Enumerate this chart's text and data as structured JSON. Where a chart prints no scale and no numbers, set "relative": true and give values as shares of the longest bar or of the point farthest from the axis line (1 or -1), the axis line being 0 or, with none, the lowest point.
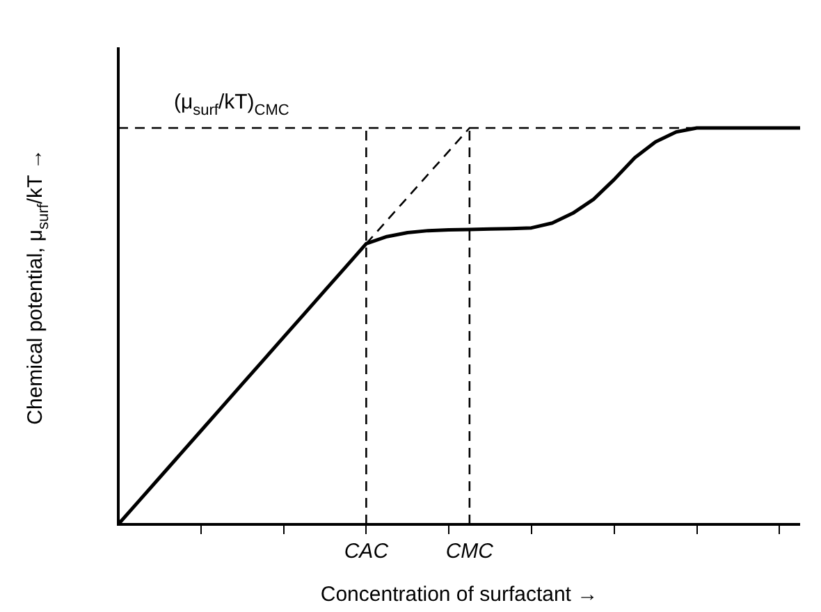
{
  "chart_data": {
    "type": "line",
    "relative": true,
    "xlabel": "Concentration of surfactant →",
    "ylabel": "Chemical potential, μ$_{surf}$/kT →",
    "categories": [
      null,
      null,
      null,
      null,
      null,
      null,
      null,
      null,
      null,
      null,
      null,
      null,
      "CAC",
      null,
      null,
      null,
      null,
      "CMC",
      null,
      null,
      null,
      null,
      null,
      null,
      null,
      null,
      null,
      null,
      null,
      null,
      null,
      null,
      null,
      null
    ],
    "series": [
      {
        "color": "#000000",
        "line_style": "solid",
        "values": [
          0,
          0.059,
          0.118,
          0.177,
          0.236,
          0.295,
          0.354,
          0.413,
          0.472,
          0.531,
          0.59,
          0.649,
          0.708,
          0.726,
          0.736,
          0.741,
          0.743,
          0.744,
          0.745,
          0.746,
          0.748,
          0.76,
          0.785,
          0.82,
          0.87,
          0.925,
          0.965,
          0.99,
          1,
          1,
          1,
          1,
          1,
          1
        ]
      },
      {
        "color": "#000000",
        "line_style": "dashed",
        "values": [
          null,
          null,
          null,
          null,
          null,
          null,
          null,
          null,
          null,
          null,
          null,
          null,
          0.708,
          null,
          null,
          null,
          null,
          1,
          null,
          null,
          null,
          null,
          null,
          null,
          null,
          null,
          null,
          null,
          null,
          null,
          null,
          null,
          null,
          null
        ]
      },
      {
        "color": "#000000",
        "line_style": "dashed",
        "values": [
          1,
          1,
          1,
          1,
          1,
          1,
          1,
          1,
          1,
          1,
          1,
          1,
          1,
          1,
          1,
          1,
          1,
          1,
          1,
          1,
          1,
          1,
          1,
          1,
          1,
          1,
          1,
          1,
          1,
          1,
          1,
          1,
          1,
          1
        ]
      }
    ],
    "annotations": [
      {
        "text": "(μ$_{surf}$/kT)$_{CMC}$",
        "y": 1
      }
    ],
    "ref_lines": [
      {
        "axis": "x",
        "value": "CAC",
        "line_style": "dashed",
        "color": "#000000"
      },
      {
        "axis": "x",
        "value": "CMC",
        "line_style": "dashed",
        "color": "#000000"
      }
    ],
    "marker": "none",
    "grid": false,
    "legend": false,
    "tick_labels": "x"
  }
}
